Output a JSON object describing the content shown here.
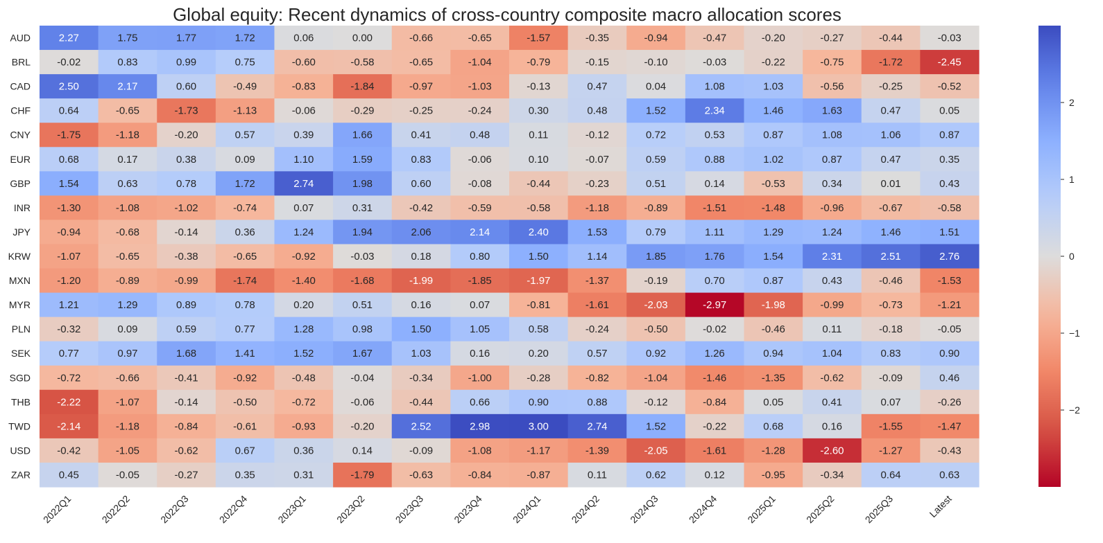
{
  "chart_data": {
    "type": "heatmap",
    "title": "Global equity: Recent dynamics of cross-country composite macro allocation scores",
    "xlabel": "",
    "ylabel": "",
    "columns": [
      "2022Q1",
      "2022Q2",
      "2022Q3",
      "2022Q4",
      "2023Q1",
      "2023Q2",
      "2023Q3",
      "2023Q4",
      "2024Q1",
      "2024Q2",
      "2024Q3",
      "2024Q4",
      "2025Q1",
      "2025Q2",
      "2025Q3",
      "Latest"
    ],
    "rows": [
      "AUD",
      "BRL",
      "CAD",
      "CHF",
      "CNY",
      "EUR",
      "GBP",
      "INR",
      "JPY",
      "KRW",
      "MXN",
      "MYR",
      "PLN",
      "SEK",
      "SGD",
      "THB",
      "TWD",
      "USD",
      "ZAR"
    ],
    "values": [
      [
        2.27,
        1.75,
        1.77,
        1.72,
        0.06,
        0.0,
        -0.66,
        -0.65,
        -1.57,
        -0.35,
        -0.94,
        -0.47,
        -0.2,
        -0.27,
        -0.44,
        -0.03
      ],
      [
        -0.02,
        0.83,
        0.99,
        0.75,
        -0.6,
        -0.58,
        -0.65,
        -1.04,
        -0.79,
        -0.15,
        -0.1,
        -0.03,
        -0.22,
        -0.75,
        -1.72,
        -2.45
      ],
      [
        2.5,
        2.17,
        0.6,
        -0.49,
        -0.83,
        -1.84,
        -0.97,
        -1.03,
        -0.13,
        0.47,
        0.04,
        1.08,
        1.03,
        -0.56,
        -0.25,
        -0.52
      ],
      [
        0.64,
        -0.65,
        -1.73,
        -1.13,
        -0.06,
        -0.29,
        -0.25,
        -0.24,
        0.3,
        0.48,
        1.52,
        2.34,
        1.46,
        1.63,
        0.47,
        0.05
      ],
      [
        -1.75,
        -1.18,
        -0.2,
        0.57,
        0.39,
        1.66,
        0.41,
        0.48,
        0.11,
        -0.12,
        0.72,
        0.53,
        0.87,
        1.08,
        1.06,
        0.87
      ],
      [
        0.68,
        0.17,
        0.38,
        0.09,
        1.1,
        1.59,
        0.83,
        -0.06,
        0.1,
        -0.07,
        0.59,
        0.88,
        1.02,
        0.87,
        0.47,
        0.35
      ],
      [
        1.54,
        0.63,
        0.78,
        1.72,
        2.74,
        1.98,
        0.6,
        -0.08,
        -0.44,
        -0.23,
        0.51,
        0.14,
        -0.53,
        0.34,
        0.01,
        0.43
      ],
      [
        -1.3,
        -1.08,
        -1.02,
        -0.74,
        0.07,
        0.31,
        -0.42,
        -0.59,
        -0.58,
        -1.18,
        -0.89,
        -1.51,
        -1.48,
        -0.96,
        -0.67,
        -0.58
      ],
      [
        -0.94,
        -0.68,
        -0.14,
        0.36,
        1.24,
        1.94,
        2.06,
        2.14,
        2.4,
        1.53,
        0.79,
        1.11,
        1.29,
        1.24,
        1.46,
        1.51
      ],
      [
        -1.07,
        -0.65,
        -0.38,
        -0.65,
        -0.92,
        -0.03,
        0.18,
        0.8,
        1.5,
        1.14,
        1.85,
        1.76,
        1.54,
        2.31,
        2.51,
        2.76
      ],
      [
        -1.2,
        -0.89,
        -0.99,
        -1.74,
        -1.4,
        -1.68,
        -1.99,
        -1.85,
        -1.97,
        -1.37,
        -0.19,
        0.7,
        0.87,
        0.43,
        -0.46,
        -1.53
      ],
      [
        1.21,
        1.29,
        0.89,
        0.78,
        0.2,
        0.51,
        0.16,
        0.07,
        -0.81,
        -1.61,
        -2.03,
        -2.97,
        -1.98,
        -0.99,
        -0.73,
        -1.21
      ],
      [
        -0.32,
        0.09,
        0.59,
        0.77,
        1.28,
        0.98,
        1.5,
        1.05,
        0.58,
        -0.24,
        -0.5,
        -0.02,
        -0.46,
        0.11,
        -0.18,
        -0.05
      ],
      [
        0.77,
        0.97,
        1.68,
        1.41,
        1.52,
        1.67,
        1.03,
        0.16,
        0.2,
        0.57,
        0.92,
        1.26,
        0.94,
        1.04,
        0.83,
        0.9
      ],
      [
        -0.72,
        -0.66,
        -0.41,
        -0.92,
        -0.48,
        -0.04,
        -0.34,
        -1.0,
        -0.28,
        -0.82,
        -1.04,
        -1.46,
        -1.35,
        -0.62,
        -0.09,
        0.46
      ],
      [
        -2.22,
        -1.07,
        -0.14,
        -0.5,
        -0.72,
        -0.06,
        -0.44,
        0.66,
        0.9,
        0.88,
        -0.12,
        -0.84,
        0.05,
        0.41,
        0.07,
        -0.26
      ],
      [
        -2.14,
        -1.18,
        -0.84,
        -0.61,
        -0.93,
        -0.2,
        2.52,
        2.98,
        3.0,
        2.74,
        1.52,
        -0.22,
        0.68,
        0.16,
        -1.55,
        -1.47
      ],
      [
        -0.42,
        -1.05,
        -0.62,
        0.67,
        0.36,
        0.14,
        -0.09,
        -1.08,
        -1.17,
        -1.39,
        -2.05,
        -1.61,
        -1.28,
        -2.6,
        -1.27,
        -0.43
      ],
      [
        0.45,
        -0.05,
        -0.27,
        0.35,
        0.31,
        -1.79,
        -0.63,
        -0.84,
        -0.87,
        0.11,
        0.62,
        0.12,
        -0.95,
        -0.34,
        0.64,
        0.63
      ]
    ],
    "colormap": "coolwarm_r",
    "vmin": -3,
    "vmax": 3,
    "colorbar_ticks": [
      -2,
      -1,
      0,
      1,
      2
    ],
    "grid": false,
    "legend": "colorbar-right"
  }
}
